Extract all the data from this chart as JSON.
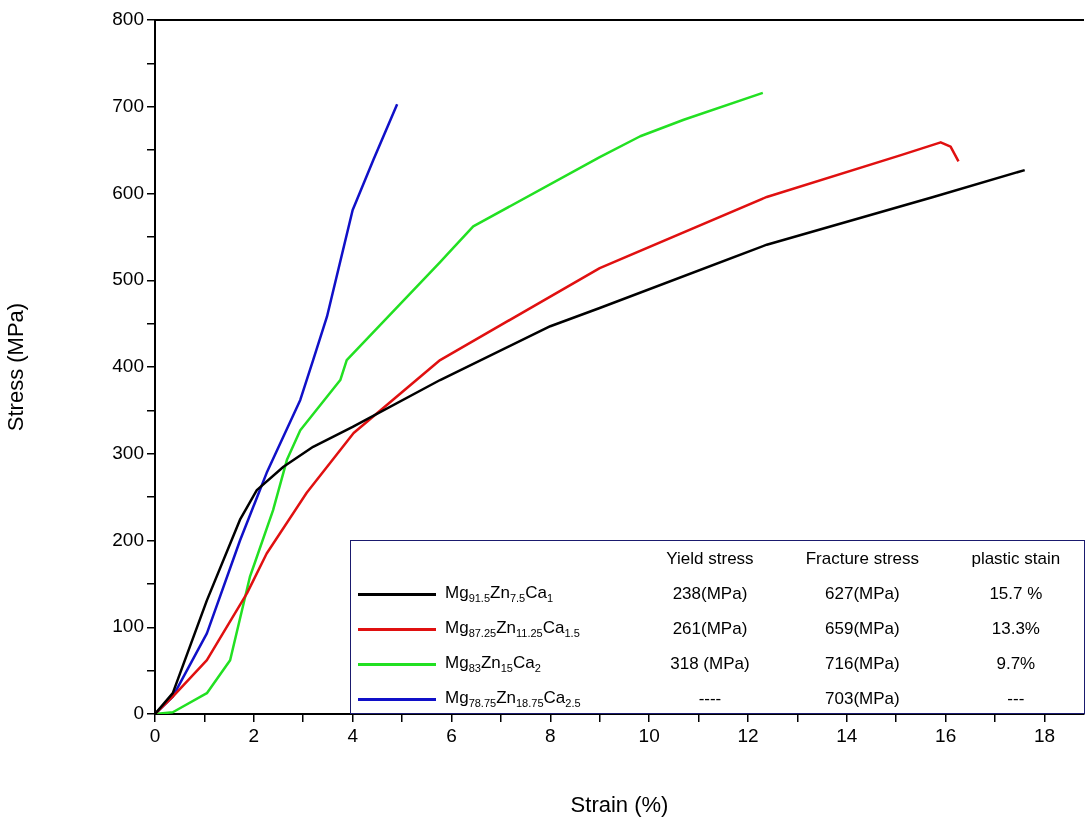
{
  "chart_data": {
    "type": "line",
    "xlabel": "Strain (%)",
    "ylabel": "Stress (MPa)",
    "xlim": [
      0,
      18.8
    ],
    "xticks": [
      0,
      {
        "value": 1,
        "label": null
      },
      2,
      {
        "value": 3,
        "label": null
      },
      4,
      {
        "value": 5,
        "label": null
      },
      6,
      {
        "value": 7,
        "label": null
      },
      8,
      {
        "value": 9,
        "label": null
      },
      10,
      {
        "value": 11,
        "label": null
      },
      12,
      {
        "value": 13,
        "label": null
      },
      14,
      {
        "value": 15,
        "label": null
      },
      16,
      {
        "value": 17,
        "label": null
      },
      18
    ],
    "ylim": [
      0,
      800
    ],
    "yticks": [
      0,
      {
        "value": 50,
        "label": null
      },
      100,
      {
        "value": 150,
        "label": null
      },
      200,
      {
        "value": 250,
        "label": null
      },
      300,
      {
        "value": 350,
        "label": null
      },
      400,
      {
        "value": 450,
        "label": null
      },
      500,
      {
        "value": 550,
        "label": null
      },
      600,
      {
        "value": 650,
        "label": null
      },
      700,
      {
        "value": 750,
        "label": null
      },
      800
    ],
    "grid": false,
    "legend": "bottom left",
    "marker": "none",
    "line_style": "solid",
    "series": [
      {
        "name": "Mg$_{91.5}$Zn$_{7.5}$Ca$_{1}$",
        "color": "#000000",
        "x": [
          0,
          0.36,
          1.05,
          1.72,
          2.06,
          2.6,
          3.2,
          4.0,
          5.77,
          8.0,
          9.0,
          12.38,
          15.75,
          17.6
        ],
        "values": [
          0,
          24,
          131,
          224,
          258,
          285,
          308,
          331,
          385,
          447,
          468,
          541,
          596,
          627
        ]
      },
      {
        "name": "Mg$_{87.25}$Zn$_{11.25}$Ca$_{1.5}$",
        "color": "#e01010",
        "x": [
          0,
          0.36,
          1.05,
          1.86,
          2.26,
          3.07,
          4.02,
          5.77,
          9.0,
          12.38,
          15.08,
          15.9,
          16.1,
          16.26
        ],
        "values": [
          0,
          20,
          62,
          139,
          185,
          255,
          324,
          408,
          514,
          596,
          644,
          659,
          654,
          637
        ]
      },
      {
        "name": "Mg$_{83}$Zn$_{15}$Ca$_{2}$",
        "color": "#22e022",
        "x": [
          0,
          0.36,
          1.05,
          1.52,
          1.92,
          2.39,
          2.67,
          2.94,
          3.75,
          3.88,
          5.77,
          6.44,
          9.0,
          9.82,
          10.7,
          12.3
        ],
        "values": [
          0,
          2,
          24,
          62,
          158,
          235,
          293,
          327,
          385,
          408,
          521,
          562,
          642,
          666,
          685,
          716
        ]
      },
      {
        "name": "Mg$_{78.75}$Zn$_{18.75}$Ca$_{2.5}$",
        "color": "#1010c8",
        "x": [
          0,
          0.36,
          1.05,
          1.72,
          2.26,
          2.94,
          3.2,
          3.48,
          4.0,
          4.08,
          4.42,
          4.9
        ],
        "values": [
          0,
          20,
          93,
          200,
          278,
          362,
          408,
          458,
          581,
          592,
          639,
          703
        ]
      }
    ],
    "annotations": [
      "Yield stress",
      "Fracture stress",
      "plastic stain",
      "238(MPa)",
      "627(MPa)",
      "15.7 %",
      "261(MPa)",
      "659(MPa)",
      "13.3%",
      "318 (MPa)",
      "716(MPa)",
      "9.7%",
      "----",
      "703(MPa)",
      "---"
    ]
  }
}
